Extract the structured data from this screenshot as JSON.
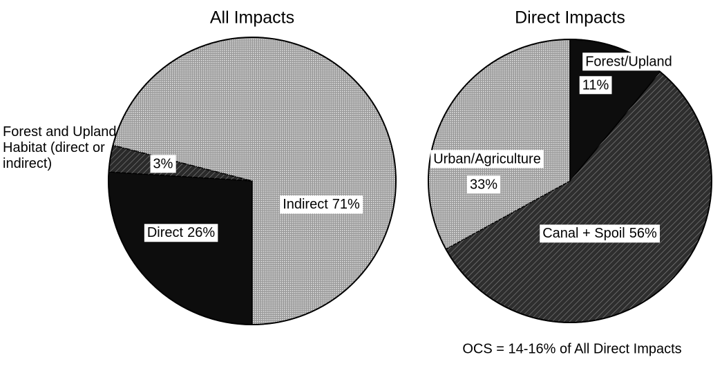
{
  "chart_data": [
    {
      "type": "pie",
      "title": "All Impacts",
      "categories": [
        "Direct",
        "Forest and Upland Habitat (direct or indirect)",
        "Indirect"
      ],
      "values": [
        26,
        3,
        71
      ],
      "value_labels": [
        "26%",
        "3%",
        "71%"
      ],
      "colors": [
        "#0d0d0d",
        "#2a2a2a",
        "#9a9a9a"
      ],
      "start_angle": 180
    },
    {
      "type": "pie",
      "title": "Direct Impacts",
      "categories": [
        "Forest/Upland",
        "Canal + Spoil",
        "Urban/Agriculture"
      ],
      "values": [
        11,
        56,
        33
      ],
      "value_labels": [
        "11%",
        "56%",
        "33%"
      ],
      "colors": [
        "#0d0d0d",
        "#2e2e2e",
        "#9a9a9a"
      ],
      "start_angle": 0,
      "note": "OCS = 14-16% of All Direct Impacts"
    }
  ]
}
